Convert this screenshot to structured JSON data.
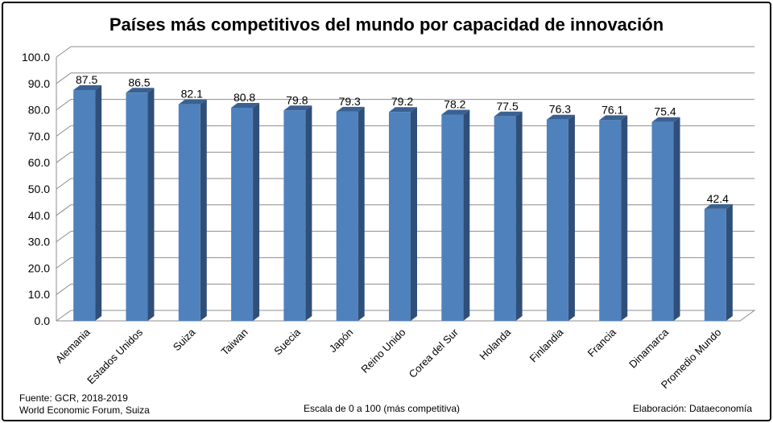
{
  "title": "Países más competitivos del mundo por capacidad de innovación",
  "footer": {
    "source_line1": "Fuente:  GCR, 2018-2019",
    "source_line2": "World Economic Forum, Suiza",
    "scale_note": "Escala de 0 a 100 (más competitiva)",
    "credit": "Elaboración: Dataeconomía"
  },
  "colors": {
    "bar_front": "#4f81bd",
    "bar_side": "#2f4f78",
    "bar_top": "#3a6192",
    "grid": "#8c8c8c"
  },
  "chart_data": {
    "type": "bar",
    "title": "Países más competitivos del mundo por capacidad de innovación",
    "categories": [
      "Alemania",
      "Estados Unidos",
      "Suiza",
      "Taiwan",
      "Suecia",
      "Japón",
      "Reino Unido",
      "Corea del Sur",
      "Holanda",
      "Finlandia",
      "Francia",
      "Dinamarca",
      "Promedio Mundo"
    ],
    "values": [
      87.5,
      86.5,
      82.1,
      80.8,
      79.8,
      79.3,
      79.2,
      78.2,
      77.5,
      76.3,
      76.1,
      75.4,
      42.4
    ],
    "ylim": [
      0,
      100
    ],
    "yticks": [
      "0.0",
      "10.0",
      "20.0",
      "30.0",
      "40.0",
      "50.0",
      "60.0",
      "70.0",
      "80.0",
      "90.0",
      "100.0"
    ],
    "grid": true,
    "legend": "none"
  }
}
